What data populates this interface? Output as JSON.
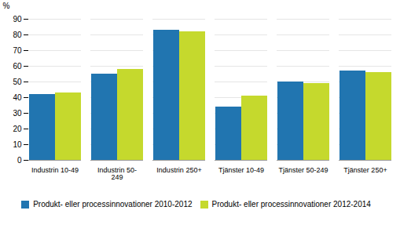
{
  "chart_data": {
    "type": "bar",
    "categories": [
      "Industrin 10-49",
      "Industrin 50-249",
      "Industrin 250+",
      "Tjänster 10-49",
      "Tjänster 50-249",
      "Tjänster 250+"
    ],
    "series": [
      {
        "name": "Produkt- eller processinnovationer 2010-2012",
        "color": "#2175B0",
        "values": [
          42,
          55,
          83,
          34,
          50,
          57
        ]
      },
      {
        "name": "Produkt- eller processinnovationer 2012-2014",
        "color": "#C5D92D",
        "values": [
          43,
          58,
          82,
          41,
          49,
          56
        ]
      }
    ],
    "ylabel": "%",
    "ylim": [
      0,
      90
    ],
    "yticks": [
      0,
      10,
      20,
      30,
      40,
      50,
      60,
      70,
      80,
      90
    ],
    "grid": true,
    "legend": "bottom"
  }
}
